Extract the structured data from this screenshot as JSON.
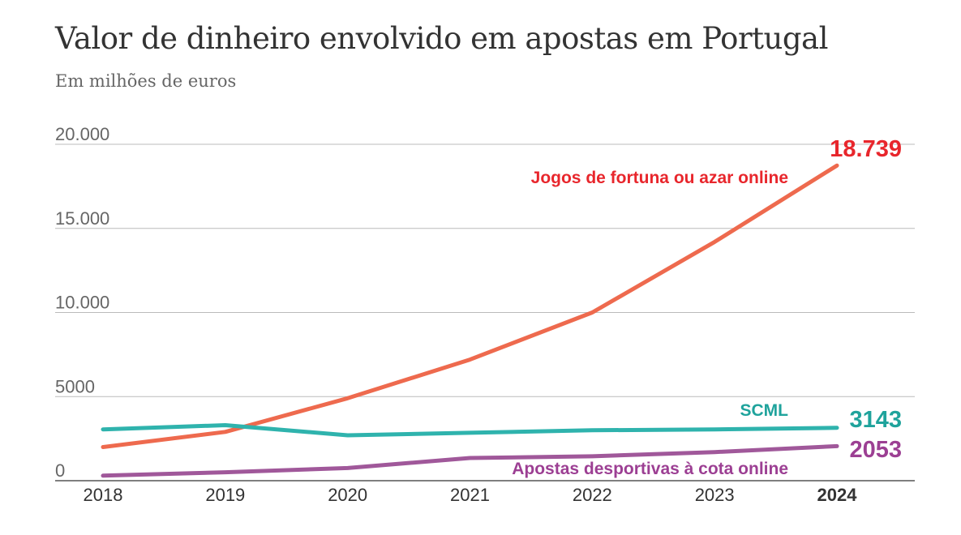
{
  "chart_data": {
    "type": "line",
    "title": "Valor de dinheiro envolvido em apostas em Portugal",
    "subtitle": "Em milhões de euros",
    "x": [
      "2018",
      "2019",
      "2020",
      "2021",
      "2022",
      "2023",
      "2024"
    ],
    "x_highlight": "2024",
    "ylim": [
      0,
      20000
    ],
    "y_ticks": [
      0,
      5000,
      10000,
      15000,
      20000
    ],
    "y_tick_labels": [
      "0",
      "5000",
      "10.000",
      "15.000",
      "20.000"
    ],
    "grid": true,
    "series": [
      {
        "name": "Jogos de fortuna ou azar online",
        "color": "#ee6a4e",
        "label_color": "#e8262c",
        "values": [
          2000,
          2900,
          4900,
          7200,
          10000,
          14200,
          18739
        ],
        "end_label": "18.739"
      },
      {
        "name": "SCML",
        "color": "#2fb3ad",
        "label_color": "#1fa39c",
        "values": [
          3050,
          3300,
          2700,
          2850,
          3000,
          3050,
          3143
        ],
        "end_label": "3143"
      },
      {
        "name": "Apostas desportivas à cota online",
        "color": "#a0589a",
        "label_color": "#9c3f93",
        "values": [
          300,
          500,
          750,
          1350,
          1450,
          1700,
          2053
        ],
        "end_label": "2053"
      }
    ]
  }
}
